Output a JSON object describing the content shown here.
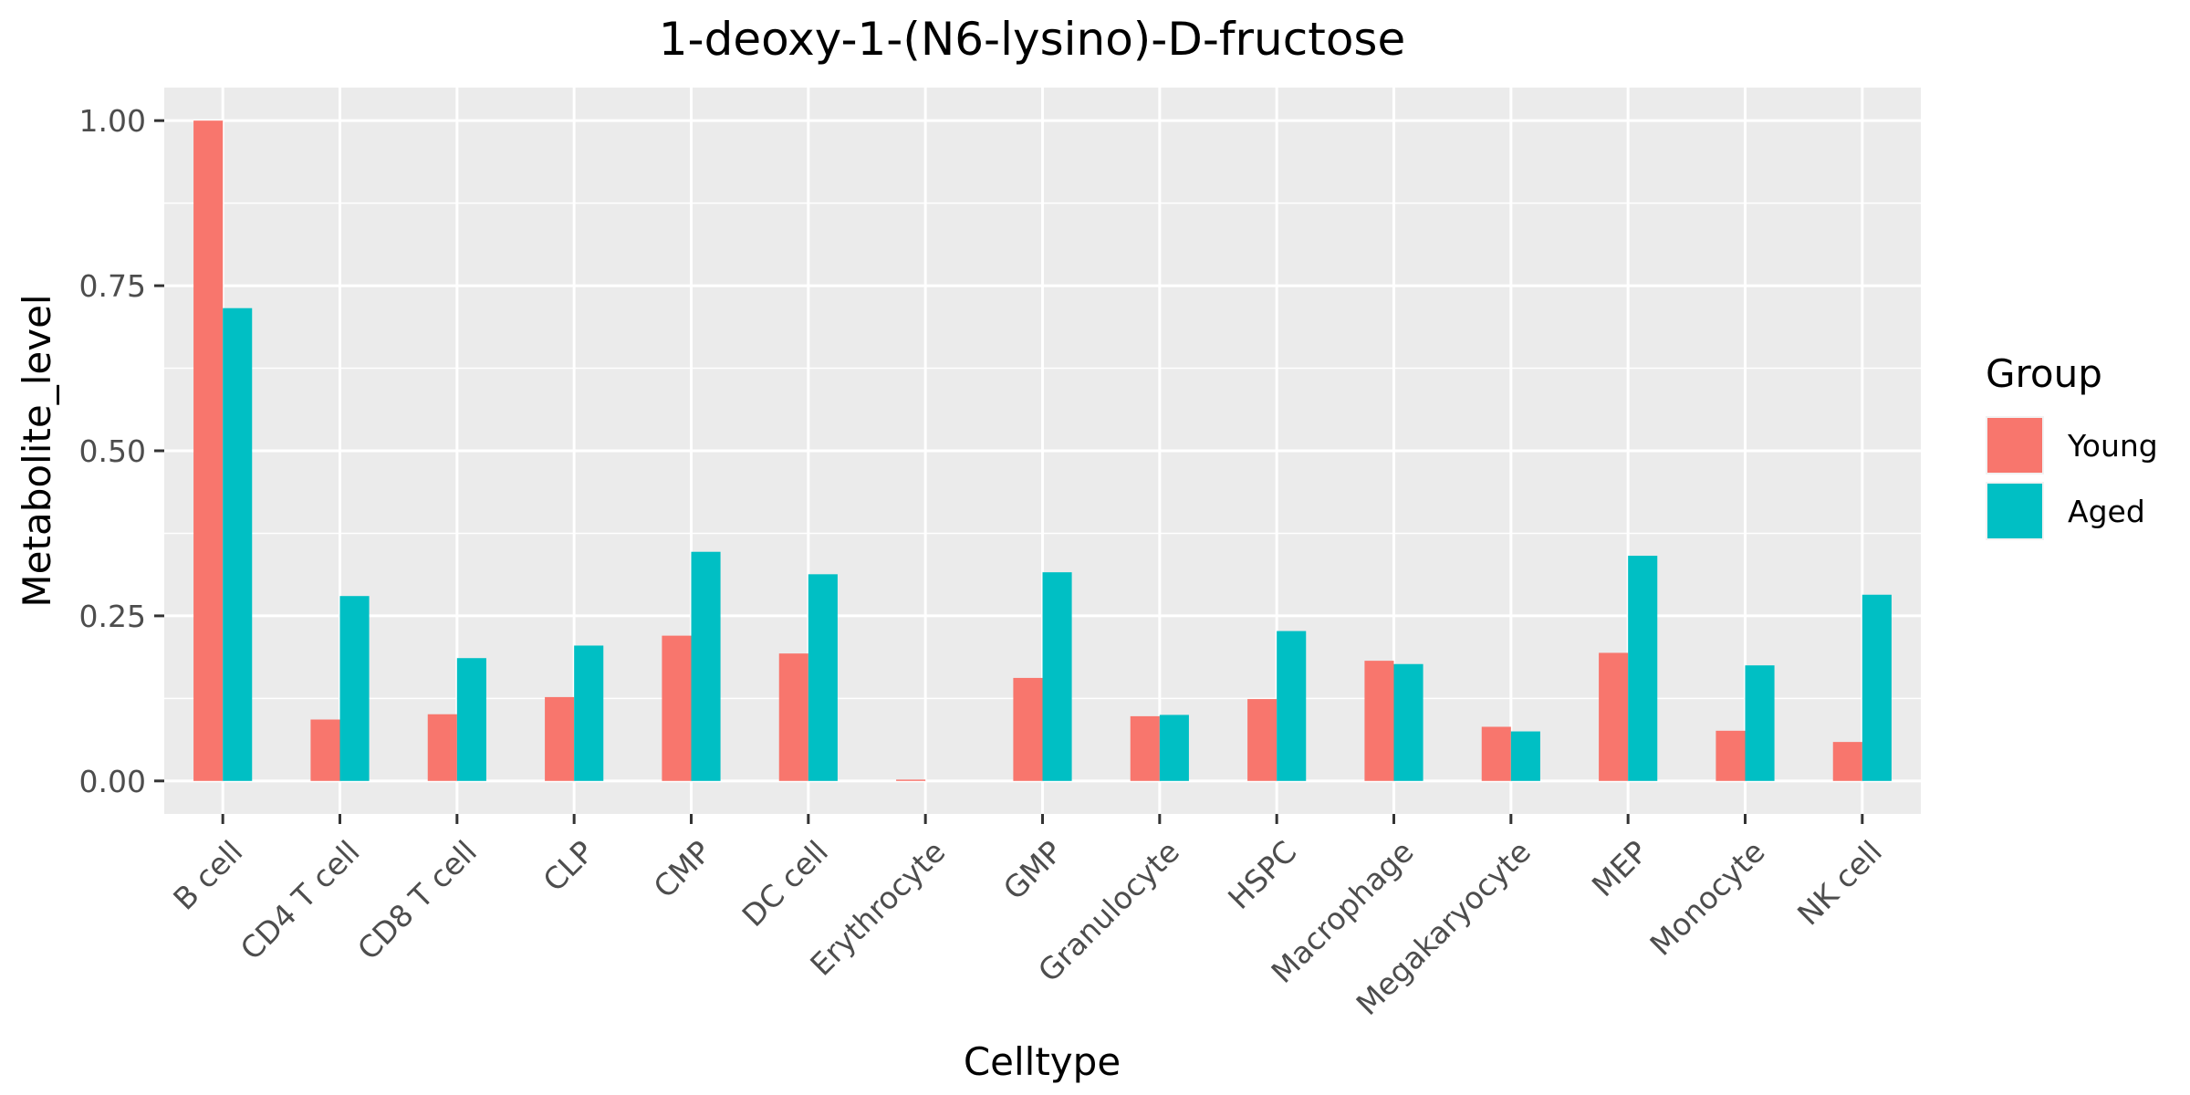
{
  "chart_data": {
    "type": "bar",
    "title": "1-deoxy-1-(N6-lysino)-D-fructose",
    "xlabel": "Celltype",
    "ylabel": "Metabolite_level",
    "categories": [
      "B cell",
      "CD4 T cell",
      "CD8 T cell",
      "CLP",
      "CMP",
      "DC cell",
      "Erythrocyte",
      "GMP",
      "Granulocyte",
      "HSPC",
      "Macrophage",
      "Megakaryocyte",
      "MEP",
      "Monocyte",
      "NK cell"
    ],
    "series": [
      {
        "name": "Young",
        "color": "#F8766D",
        "values": [
          1.0,
          0.093,
          0.101,
          0.127,
          0.22,
          0.193,
          0.002,
          0.156,
          0.098,
          0.124,
          0.182,
          0.082,
          0.194,
          0.076,
          0.059
        ]
      },
      {
        "name": "Aged",
        "color": "#00BFC4",
        "values": [
          0.716,
          0.28,
          0.186,
          0.205,
          0.347,
          0.313,
          0.0,
          0.316,
          0.1,
          0.227,
          0.177,
          0.075,
          0.341,
          0.175,
          0.282
        ]
      }
    ],
    "ylim": [
      -0.05,
      1.05
    ],
    "yticks": [
      0.0,
      0.25,
      0.5,
      0.75,
      1.0
    ],
    "ytick_labels": [
      "0.00",
      "0.25",
      "0.50",
      "0.75",
      "1.00"
    ],
    "legend": {
      "title": "Group",
      "position": "right"
    },
    "grid": true,
    "panel_background": "#EBEBEB"
  }
}
